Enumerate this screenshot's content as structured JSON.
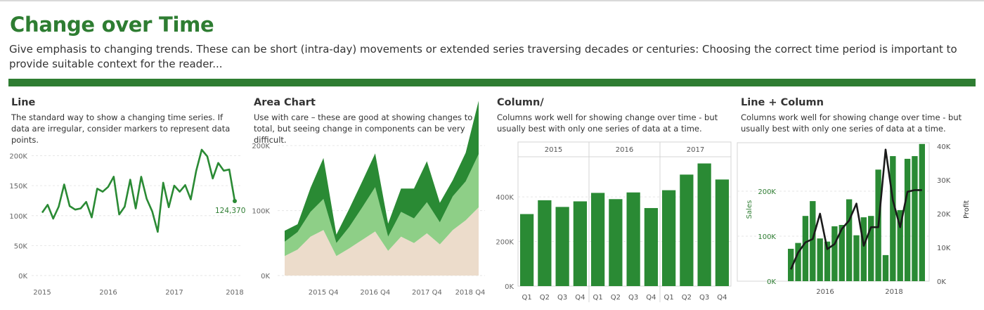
{
  "header": {
    "title": "Change over Time",
    "subtitle": "Give emphasis to changing trends. These can be short (intra-day) movements or extended series traversing decades or centuries: Choosing the correct time period is important to provide suitable context for the reader..."
  },
  "colors": {
    "brand_green": "#2e7d32",
    "dark_green": "#2a8a34",
    "light_green": "#8ecf87",
    "beige": "#ecdccb",
    "profit_line": "#1a1a1a",
    "grid": "#e6e6e6"
  },
  "panels": [
    {
      "title": "Line",
      "description": "The standard way to show a changing time series. If data are irregular, consider markers to represent data points."
    },
    {
      "title": "Area Chart",
      "description": "Use with care – these are good at showing changes to total, but seeing change in components can be very difficult."
    },
    {
      "title": "Column/",
      "description": "Columns work well for showing change over time - but usually best with only one series of data at a time."
    },
    {
      "title": "Line + Column",
      "description": "Columns work well for showing change over time - but usually best with only one series of data at a time."
    }
  ],
  "chart_data": [
    {
      "type": "line",
      "yticks": [
        "200K",
        "150K",
        "100K",
        "50K",
        "0K"
      ],
      "ylim": [
        0,
        210000
      ],
      "xticks": [
        "2015",
        "2016",
        "2017",
        "2018"
      ],
      "values": [
        105000,
        118000,
        95000,
        115000,
        152000,
        116000,
        110000,
        112000,
        123000,
        97000,
        145000,
        140000,
        148000,
        165000,
        102000,
        115000,
        160000,
        112000,
        165000,
        128000,
        107000,
        73000,
        155000,
        114000,
        150000,
        140000,
        151000,
        127000,
        175000,
        210000,
        199000,
        162000,
        188000,
        175000,
        177000,
        124370
      ],
      "end_label": "124,370"
    },
    {
      "type": "area",
      "yticks": [
        "200K",
        "100K",
        "0K"
      ],
      "ylim": [
        0,
        290000
      ],
      "xticks": [
        "2015 Q4",
        "2016 Q4",
        "2017 Q4",
        "2018 Q4"
      ],
      "series": [
        {
          "values": [
            30000,
            40000,
            60000,
            70000,
            30000,
            42000,
            55000,
            68000,
            38000,
            60000,
            50000,
            65000,
            48000,
            70000,
            85000,
            105000
          ]
        },
        {
          "values": [
            22000,
            27000,
            38000,
            48000,
            20000,
            33000,
            50000,
            68000,
            22000,
            38000,
            38000,
            48000,
            34000,
            52000,
            60000,
            82000
          ]
        },
        {
          "values": [
            17000,
            12000,
            37000,
            63000,
            13000,
            28000,
            40000,
            52000,
            20000,
            36000,
            46000,
            63000,
            30000,
            25000,
            44000,
            82000
          ]
        }
      ]
    },
    {
      "type": "bar",
      "years": [
        "2015",
        "2016",
        "2017"
      ],
      "categories": [
        "Q1",
        "Q2",
        "Q3",
        "Q4",
        "Q1",
        "Q2",
        "Q3",
        "Q4",
        "Q1",
        "Q2",
        "Q3",
        "Q4"
      ],
      "values": [
        323000,
        385000,
        355000,
        380000,
        418000,
        390000,
        420000,
        350000,
        430000,
        500000,
        550000,
        478000
      ],
      "yticks": [
        "400K",
        "200K",
        "0K"
      ],
      "ylim": [
        0,
        580000
      ]
    },
    {
      "type": "bar+line",
      "series": [
        {
          "name": "Sales",
          "values": [
            72000,
            85000,
            145000,
            178000,
            95000,
            88000,
            122000,
            125000,
            182000,
            102000,
            142000,
            145000,
            248000,
            58000,
            278000,
            158000,
            272000,
            278000,
            305000
          ]
        },
        {
          "name": "Profit",
          "values": [
            3500,
            8500,
            11500,
            12500,
            20000,
            9500,
            11000,
            15500,
            18000,
            23000,
            10500,
            16000,
            16000,
            39000,
            24000,
            16000,
            26500,
            27000,
            27000
          ]
        }
      ],
      "xticks": [
        "2016",
        "2018"
      ],
      "yticks_left": [
        "200K",
        "100K",
        "0K"
      ],
      "yticks_right": [
        "40K",
        "30K",
        "20K",
        "10K",
        "0K"
      ],
      "ylabel_left": "Sales",
      "ylabel_right": "Profit",
      "ylim_left": [
        0,
        300000
      ],
      "ylim_right": [
        0,
        40000
      ]
    }
  ]
}
